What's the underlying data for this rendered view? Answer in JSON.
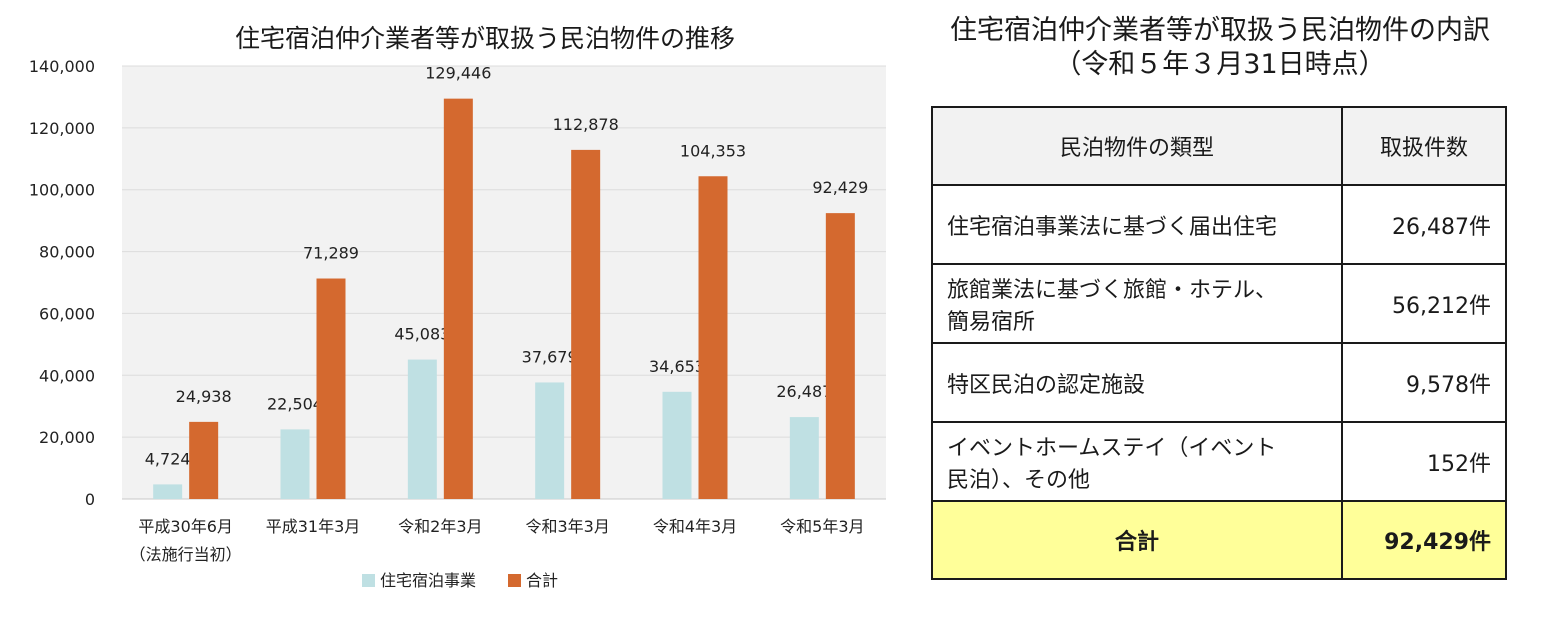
{
  "chart_data": {
    "type": "bar",
    "title": "住宅宿泊仲介業者等が取扱う民泊物件の推移",
    "categories": [
      [
        "平成30年6月",
        "（法施行当初）"
      ],
      [
        "平成31年3月"
      ],
      [
        "令和2年3月"
      ],
      [
        "令和3年3月"
      ],
      [
        "令和4年3月"
      ],
      [
        "令和5年3月"
      ]
    ],
    "series": [
      {
        "name": "住宅宿泊事業",
        "color": "#bfe0e3",
        "values": [
          4724,
          22504,
          45083,
          37679,
          34653,
          26487
        ],
        "labels": [
          "4,724",
          "22,504",
          "45,083",
          "37,679",
          "34,653",
          "26,487"
        ]
      },
      {
        "name": "合計",
        "color": "#d4692f",
        "values": [
          24938,
          71289,
          129446,
          112878,
          104353,
          92429
        ],
        "labels": [
          "24,938",
          "71,289",
          "129,446",
          "112,878",
          "104,353",
          "92,429"
        ]
      }
    ],
    "ylim": [
      0,
      140000
    ],
    "yticks": [
      0,
      20000,
      40000,
      60000,
      80000,
      100000,
      120000,
      140000
    ],
    "ytick_labels": [
      "0",
      "20,000",
      "40,000",
      "60,000",
      "80,000",
      "100,000",
      "120,000",
      "140,000"
    ],
    "xlabel": "",
    "ylabel": "",
    "grid": true,
    "legend": "bottom"
  },
  "table": {
    "title_line1": "住宅宿泊仲介業者等が取扱う民泊物件の内訳",
    "title_line2": "（令和５年３月31日時点）",
    "header": {
      "type": "民泊物件の類型",
      "count": "取扱件数"
    },
    "rows": [
      {
        "type_line1": "住宅宿泊事業法に基づく届出住宅",
        "type_line2": "",
        "count": "26,487件"
      },
      {
        "type_line1": "旅館業法に基づく旅館・ホテル、",
        "type_line2": "簡易宿所",
        "count": "56,212件"
      },
      {
        "type_line1": "特区民泊の認定施設",
        "type_line2": "",
        "count": "9,578件"
      },
      {
        "type_line1": "イベントホームステイ（イベント",
        "type_line2": "民泊）、その他",
        "count": "152件"
      }
    ],
    "total": {
      "label": "合計",
      "count": "92,429件"
    }
  }
}
